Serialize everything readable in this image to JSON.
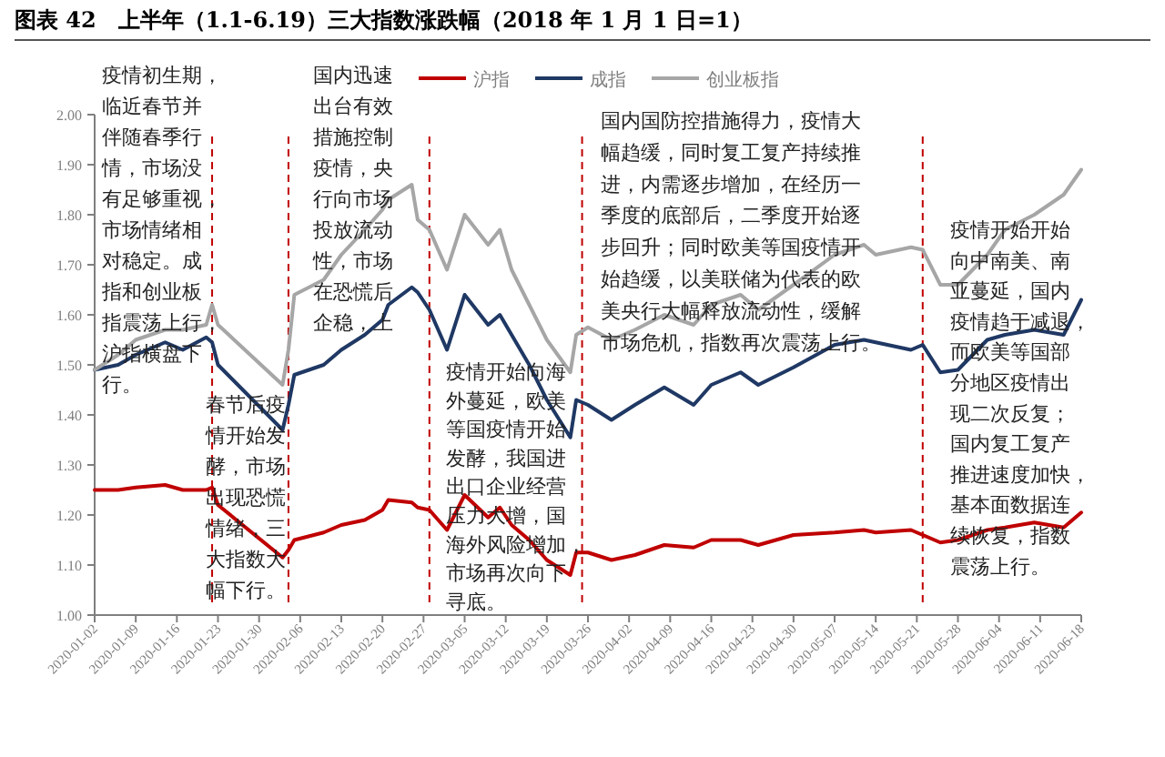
{
  "chart_data": {
    "type": "line",
    "title": "图表 42　上半年（1.1-6.19）三大指数涨跌幅（2018 年 1 月 1 日=1）",
    "x": [
      "2020-01-02",
      "2020-01-06",
      "2020-01-09",
      "2020-01-14",
      "2020-01-17",
      "2020-01-21",
      "2020-01-22",
      "2020-01-23",
      "2020-02-03",
      "2020-02-04",
      "2020-02-05",
      "2020-02-10",
      "2020-02-13",
      "2020-02-17",
      "2020-02-20",
      "2020-02-21",
      "2020-02-25",
      "2020-02-26",
      "2020-02-28",
      "2020-03-02",
      "2020-03-05",
      "2020-03-09",
      "2020-03-11",
      "2020-03-13",
      "2020-03-16",
      "2020-03-19",
      "2020-03-23",
      "2020-03-24",
      "2020-03-26",
      "2020-03-30",
      "2020-04-03",
      "2020-04-08",
      "2020-04-13",
      "2020-04-16",
      "2020-04-21",
      "2020-04-24",
      "2020-04-30",
      "2020-05-07",
      "2020-05-12",
      "2020-05-14",
      "2020-05-20",
      "2020-05-22",
      "2020-05-25",
      "2020-05-28",
      "2020-06-02",
      "2020-06-05",
      "2020-06-10",
      "2020-06-15",
      "2020-06-18"
    ],
    "series": [
      {
        "name": "沪指",
        "color": "#c00000",
        "values": [
          1.25,
          1.25,
          1.255,
          1.26,
          1.25,
          1.25,
          1.255,
          1.22,
          1.115,
          1.13,
          1.15,
          1.165,
          1.18,
          1.19,
          1.21,
          1.23,
          1.225,
          1.215,
          1.21,
          1.17,
          1.24,
          1.195,
          1.215,
          1.18,
          1.15,
          1.11,
          1.08,
          1.125,
          1.125,
          1.11,
          1.12,
          1.14,
          1.135,
          1.15,
          1.15,
          1.14,
          1.16,
          1.165,
          1.17,
          1.165,
          1.17,
          1.16,
          1.145,
          1.15,
          1.17,
          1.175,
          1.185,
          1.175,
          1.205
        ]
      },
      {
        "name": "成指",
        "color": "#1f3864",
        "values": [
          1.49,
          1.5,
          1.52,
          1.545,
          1.53,
          1.555,
          1.545,
          1.5,
          1.37,
          1.42,
          1.48,
          1.5,
          1.53,
          1.56,
          1.59,
          1.62,
          1.655,
          1.645,
          1.61,
          1.53,
          1.64,
          1.58,
          1.6,
          1.56,
          1.5,
          1.43,
          1.355,
          1.43,
          1.42,
          1.39,
          1.42,
          1.455,
          1.42,
          1.46,
          1.485,
          1.46,
          1.495,
          1.54,
          1.55,
          1.545,
          1.53,
          1.54,
          1.485,
          1.49,
          1.55,
          1.56,
          1.57,
          1.56,
          1.63
        ]
      },
      {
        "name": "创业板指",
        "color": "#a6a6a6",
        "values": [
          1.49,
          1.52,
          1.55,
          1.57,
          1.57,
          1.58,
          1.62,
          1.58,
          1.46,
          1.53,
          1.64,
          1.67,
          1.72,
          1.77,
          1.81,
          1.83,
          1.86,
          1.79,
          1.77,
          1.69,
          1.8,
          1.74,
          1.77,
          1.69,
          1.62,
          1.55,
          1.485,
          1.56,
          1.575,
          1.55,
          1.57,
          1.6,
          1.58,
          1.62,
          1.64,
          1.61,
          1.66,
          1.72,
          1.74,
          1.72,
          1.735,
          1.73,
          1.66,
          1.66,
          1.72,
          1.77,
          1.8,
          1.84,
          1.89
        ]
      }
    ],
    "xlim": [
      "2020-01-02",
      "2020-06-18"
    ],
    "xticks": [
      {
        "value": "2020-01-02",
        "label": "2020-01-02"
      },
      {
        "value": "2020-01-09",
        "label": "2020-01-09"
      },
      {
        "value": "2020-01-16",
        "label": "2020-01-16"
      },
      {
        "value": "2020-01-23",
        "label": "2020-01-23"
      },
      {
        "value": "2020-01-30",
        "label": "2020-01-30"
      },
      {
        "value": "2020-02-06",
        "label": "2020-02-06"
      },
      {
        "value": "2020-02-13",
        "label": "2020-02-13"
      },
      {
        "value": "2020-02-20",
        "label": "2020-02-20"
      },
      {
        "value": "2020-02-27",
        "label": "2020-02-27"
      },
      {
        "value": "2020-03-05",
        "label": "2020-03-05"
      },
      {
        "value": "2020-03-12",
        "label": "2020-03-12"
      },
      {
        "value": "2020-03-19",
        "label": "2020-03-19"
      },
      {
        "value": "2020-03-26",
        "label": "2020-03-26"
      },
      {
        "value": "2020-04-02",
        "label": "2020-04-02"
      },
      {
        "value": "2020-04-09",
        "label": "2020-04-09"
      },
      {
        "value": "2020-04-16",
        "label": "2020-04-16"
      },
      {
        "value": "2020-04-23",
        "label": "2020-04-23"
      },
      {
        "value": "2020-04-30",
        "label": "2020-04-30"
      },
      {
        "value": "2020-05-07",
        "label": "2020-05-07"
      },
      {
        "value": "2020-05-14",
        "label": "2020-05-14"
      },
      {
        "value": "2020-05-21",
        "label": "2020-05-21"
      },
      {
        "value": "2020-05-28",
        "label": "2020-05-28"
      },
      {
        "value": "2020-06-04",
        "label": "2020-06-04"
      },
      {
        "value": "2020-06-11",
        "label": "2020-06-11"
      },
      {
        "value": "2020-06-18",
        "label": "2020-06-18"
      }
    ],
    "ylim": [
      1,
      2
    ],
    "yticks": [
      {
        "value": 1,
        "label": "1.00"
      },
      {
        "value": 1.1,
        "label": "1.10"
      },
      {
        "value": 1.2,
        "label": "1.20"
      },
      {
        "value": 1.3,
        "label": "1.30"
      },
      {
        "value": 1.4,
        "label": "1.40"
      },
      {
        "value": 1.5,
        "label": "1.50"
      },
      {
        "value": 1.6,
        "label": "1.60"
      },
      {
        "value": 1.7,
        "label": "1.70"
      },
      {
        "value": 1.8,
        "label": "1.80"
      },
      {
        "value": 1.9,
        "label": "1.90"
      },
      {
        "value": 2,
        "label": "2.00"
      }
    ],
    "ref_lines": [
      {
        "axis": "x",
        "value": "2020-01-22",
        "color": "#c00000",
        "line_style": "dashed"
      },
      {
        "axis": "x",
        "value": "2020-02-04",
        "color": "#c00000",
        "line_style": "dashed"
      },
      {
        "axis": "x",
        "value": "2020-02-28",
        "color": "#c00000",
        "line_style": "dashed"
      },
      {
        "axis": "x",
        "value": "2020-03-25",
        "color": "#c00000",
        "line_style": "dashed"
      },
      {
        "axis": "x",
        "value": "2020-05-22",
        "color": "#c00000",
        "line_style": "dashed"
      }
    ],
    "annotations": [
      "疫情初生期，临近春节并伴随春季行情，市场没有足够重视，市场情绪相对稳定。成指和创业板指震荡上行，沪指横盘下行。",
      "春节后疫情开始发酵，市场出现恐慌情绪，三大指数大幅下行。",
      "国内迅速出台有效措施控制疫情，央行向市场投放流动性，市场在恐慌后企稳，上",
      "疫情开始向海外蔓延，欧美等国疫情开始发酵，我国进出口企业经营压力大增，国海外风险增加，市场再次向下寻底。",
      "国内国防控措施得力，疫情大幅趋缓，同时复工复产持续推进，内需逐步增加，在经历一季度的底部后，二季度开始逐步回升；同时欧美等国疫情开始趋缓，以美联储为代表的欧美央行大幅释放流动性，缓解市场危机，指数再次震荡上行。",
      "疫情开始开始向中南美、南亚蔓延，国内疫情趋于减退，而欧美等国部分地区疫情出现二次反复；国内复工复产推进速度加快，基本面数据连续恢复，指数震荡上行。"
    ],
    "legend": "top",
    "line_style": "solid",
    "marker": "none",
    "grid": false
  }
}
